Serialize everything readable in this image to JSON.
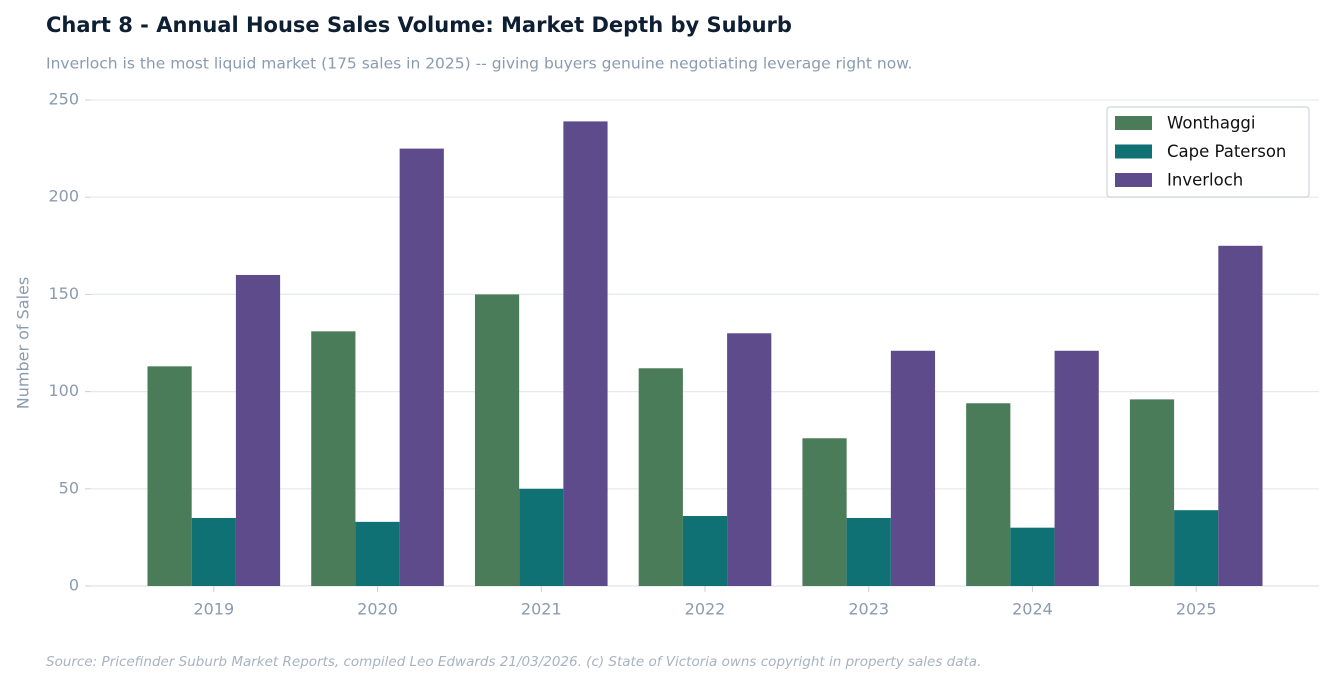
{
  "chart_data": {
    "type": "bar",
    "title": "Chart 8 - Annual House Sales Volume: Market Depth by Suburb",
    "subtitle": "Inverloch is the most liquid market (175 sales in 2025) -- giving buyers genuine negotiating leverage right now.",
    "y_label": "Number of Sales",
    "source": "Source: Pricefinder Suburb Market Reports, compiled Leo Edwards 21/03/2026. (c) State of Victoria owns copyright in property sales data.",
    "categories": [
      "2019",
      "2020",
      "2021",
      "2022",
      "2023",
      "2024",
      "2025"
    ],
    "series": [
      {
        "name": "Wonthaggi",
        "color": "#4a7c59",
        "values": [
          113,
          131,
          150,
          112,
          76,
          94,
          96
        ]
      },
      {
        "name": "Cape Paterson",
        "color": "#0f7173",
        "values": [
          35,
          33,
          50,
          36,
          35,
          30,
          39
        ]
      },
      {
        "name": "Inverloch",
        "color": "#5e4b8b",
        "values": [
          160,
          225,
          239,
          130,
          121,
          121,
          175
        ]
      }
    ],
    "ylim": [
      0,
      250
    ],
    "yticks": [
      0,
      50,
      100,
      150,
      200,
      250
    ],
    "grid": true,
    "legend": "upper right"
  }
}
